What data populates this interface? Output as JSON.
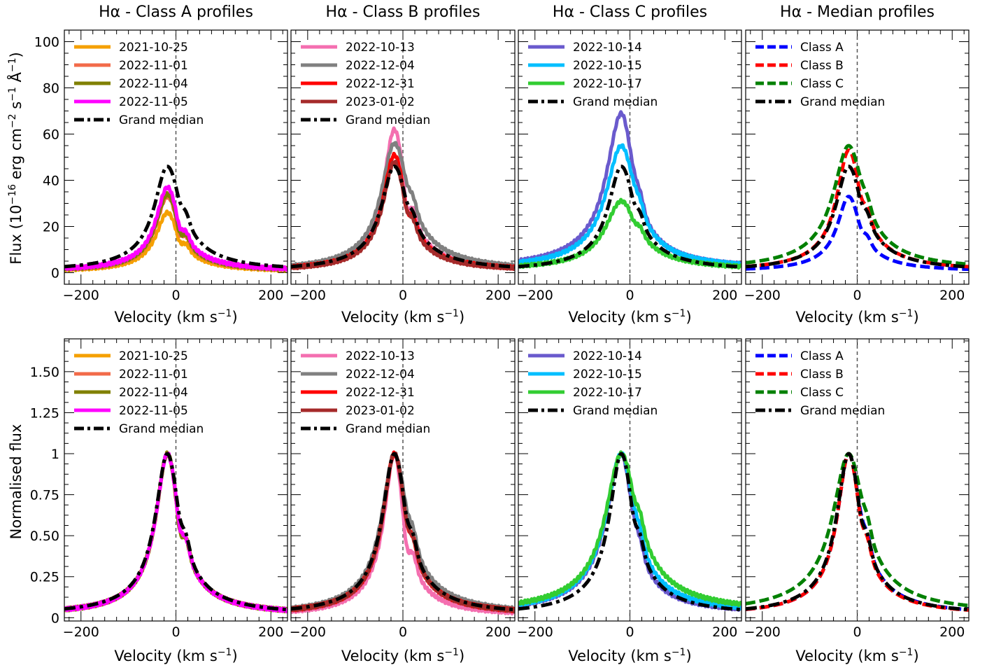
{
  "figure": {
    "ylabel_top": "Flux (10^-16 erg cm^-2 s^-1 Å^-1)",
    "ylabel_bottom": "Normalised flux",
    "xlabel": "Velocity (km s^-1)"
  },
  "chart_data": [
    {
      "type": "line",
      "row": 0,
      "col": 0,
      "title": "Hα - Class A profiles",
      "xlabel": "Velocity (km s^-1)",
      "ylabel": "Flux (10^-16 erg cm^-2 s^-1 Å^-1)",
      "xlim": [
        -235,
        235
      ],
      "ylim": [
        -5,
        105
      ],
      "xticks": [
        -200,
        0,
        200
      ],
      "yticks": [
        0,
        20,
        40,
        60,
        80,
        100
      ],
      "legend_loc": "upper left",
      "series": [
        {
          "name": "2021-10-25",
          "color": "#f5a000",
          "style": "solid",
          "peak": 26,
          "width": 1.0,
          "asym": 1.0,
          "dip": 0.12,
          "base": 0.6
        },
        {
          "name": "2022-11-01",
          "color": "#f26b4a",
          "style": "solid",
          "peak": 33,
          "width": 1.0,
          "asym": 1.0,
          "dip": 0.12,
          "base": 0.7
        },
        {
          "name": "2022-11-04",
          "color": "#808000",
          "style": "solid",
          "peak": 34,
          "width": 1.0,
          "asym": 1.0,
          "dip": 0.12,
          "base": 0.7
        },
        {
          "name": "2022-11-05",
          "color": "#ff00ff",
          "style": "solid",
          "peak": 37,
          "width": 1.0,
          "asym": 1.0,
          "dip": 0.1,
          "base": 0.8
        },
        {
          "name": "Grand median",
          "color": "#000000",
          "style": "dashdot",
          "peak": 46,
          "width": 1.15,
          "asym": 1.05,
          "dip": 0.04,
          "base": 0.8
        }
      ]
    },
    {
      "type": "line",
      "row": 0,
      "col": 1,
      "title": "Hα - Class B profiles",
      "xlabel": "Velocity (km s^-1)",
      "ylabel": "",
      "xlim": [
        -235,
        235
      ],
      "ylim": [
        -5,
        105
      ],
      "xticks": [
        -200,
        0,
        200
      ],
      "yticks": [
        0,
        20,
        40,
        60,
        80,
        100
      ],
      "legend_loc": "upper left",
      "series": [
        {
          "name": "2022-10-13",
          "color": "#f46fb0",
          "style": "solid",
          "peak": 62,
          "width": 0.95,
          "asym": 1.0,
          "dip": 0.15,
          "base": 0.7
        },
        {
          "name": "2022-12-04",
          "color": "#808080",
          "style": "solid",
          "peak": 56,
          "width": 1.15,
          "asym": 1.1,
          "dip": 0.03,
          "base": 0.8
        },
        {
          "name": "2022-12-31",
          "color": "#ff0000",
          "style": "solid",
          "peak": 51,
          "width": 1.0,
          "asym": 1.0,
          "dip": 0.1,
          "base": 0.9
        },
        {
          "name": "2023-01-02",
          "color": "#a52a2a",
          "style": "solid",
          "peak": 48,
          "width": 1.0,
          "asym": 1.0,
          "dip": 0.06,
          "base": 0.8
        },
        {
          "name": "Grand median",
          "color": "#000000",
          "style": "dashdot",
          "peak": 46,
          "width": 1.15,
          "asym": 1.05,
          "dip": 0.04,
          "base": 0.8
        }
      ]
    },
    {
      "type": "line",
      "row": 0,
      "col": 2,
      "title": "Hα - Class C profiles",
      "xlabel": "Velocity (km s^-1)",
      "ylabel": "",
      "xlim": [
        -235,
        235
      ],
      "ylim": [
        -5,
        105
      ],
      "xticks": [
        -200,
        0,
        200
      ],
      "yticks": [
        0,
        20,
        40,
        60,
        80,
        100
      ],
      "legend_loc": "upper left",
      "series": [
        {
          "name": "2022-10-14",
          "color": "#6a5acd",
          "style": "solid",
          "peak": 69,
          "width": 1.3,
          "asym": 0.8,
          "dip": 0.0,
          "base": 1.8
        },
        {
          "name": "2022-10-15",
          "color": "#00bfff",
          "style": "solid",
          "peak": 55,
          "width": 1.35,
          "asym": 0.9,
          "dip": 0.0,
          "base": 1.6
        },
        {
          "name": "2022-10-17",
          "color": "#32cd32",
          "style": "solid",
          "peak": 31,
          "width": 1.4,
          "asym": 1.0,
          "dip": 0.05,
          "base": 1.2
        },
        {
          "name": "Grand median",
          "color": "#000000",
          "style": "dashdot",
          "peak": 46,
          "width": 1.15,
          "asym": 1.05,
          "dip": 0.04,
          "base": 0.8
        }
      ]
    },
    {
      "type": "line",
      "row": 0,
      "col": 3,
      "title": "Hα - Median profiles",
      "xlabel": "Velocity (km s^-1)",
      "ylabel": "",
      "xlim": [
        -235,
        235
      ],
      "ylim": [
        -5,
        105
      ],
      "xticks": [
        -200,
        0,
        200
      ],
      "yticks": [
        0,
        20,
        40,
        60,
        80,
        100
      ],
      "legend_loc": "upper left",
      "series": [
        {
          "name": "Class A",
          "color": "#0000ff",
          "style": "dashed",
          "peak": 33,
          "width": 1.0,
          "asym": 1.0,
          "dip": 0.05,
          "base": 0.6
        },
        {
          "name": "Class B",
          "color": "#ff0000",
          "style": "dashed",
          "peak": 53,
          "width": 1.05,
          "asym": 1.05,
          "dip": 0.05,
          "base": 0.9
        },
        {
          "name": "Class C",
          "color": "#008000",
          "style": "dashed",
          "peak": 55,
          "width": 1.35,
          "asym": 0.95,
          "dip": 0.0,
          "base": 1.4
        },
        {
          "name": "Grand median",
          "color": "#000000",
          "style": "dashdot",
          "peak": 46,
          "width": 1.15,
          "asym": 1.05,
          "dip": 0.04,
          "base": 0.8
        }
      ]
    },
    {
      "type": "line",
      "row": 1,
      "col": 0,
      "title": "",
      "xlabel": "Velocity (km s^-1)",
      "ylabel": "Normalised flux",
      "xlim": [
        -235,
        235
      ],
      "ylim": [
        -0.02,
        1.7
      ],
      "xticks": [
        -200,
        0,
        200
      ],
      "yticks": [
        0.0,
        0.25,
        0.5,
        0.75,
        1.0,
        1.25,
        1.5
      ],
      "legend_loc": "upper left",
      "series": [
        {
          "name": "2021-10-25",
          "color": "#f5a000",
          "style": "solid",
          "peak": 1.0,
          "width": 1.0,
          "asym": 1.0,
          "dip": 0.1,
          "base": 0.02
        },
        {
          "name": "2022-11-01",
          "color": "#f26b4a",
          "style": "solid",
          "peak": 1.0,
          "width": 1.0,
          "asym": 1.0,
          "dip": 0.08,
          "base": 0.02
        },
        {
          "name": "2022-11-04",
          "color": "#808000",
          "style": "solid",
          "peak": 1.0,
          "width": 1.0,
          "asym": 1.0,
          "dip": 0.1,
          "base": 0.02
        },
        {
          "name": "2022-11-05",
          "color": "#ff00ff",
          "style": "solid",
          "peak": 1.0,
          "width": 1.0,
          "asym": 1.0,
          "dip": 0.08,
          "base": 0.02
        },
        {
          "name": "Grand median",
          "color": "#000000",
          "style": "dashdot",
          "peak": 1.0,
          "width": 1.05,
          "asym": 1.0,
          "dip": 0.04,
          "base": 0.02
        }
      ]
    },
    {
      "type": "line",
      "row": 1,
      "col": 1,
      "title": "",
      "xlabel": "Velocity (km s^-1)",
      "ylabel": "",
      "xlim": [
        -235,
        235
      ],
      "ylim": [
        -0.02,
        1.7
      ],
      "xticks": [
        -200,
        0,
        200
      ],
      "yticks": [
        0.0,
        0.25,
        0.5,
        0.75,
        1.0,
        1.25,
        1.5
      ],
      "legend_loc": "upper left",
      "series": [
        {
          "name": "2022-10-13",
          "color": "#f46fb0",
          "style": "solid",
          "peak": 1.0,
          "width": 0.9,
          "asym": 0.9,
          "dip": 0.1,
          "base": 0.015
        },
        {
          "name": "2022-12-04",
          "color": "#808080",
          "style": "solid",
          "peak": 1.0,
          "width": 1.1,
          "asym": 1.05,
          "dip": 0.03,
          "base": 0.02
        },
        {
          "name": "2022-12-31",
          "color": "#ff0000",
          "style": "solid",
          "peak": 1.0,
          "width": 1.0,
          "asym": 1.0,
          "dip": 0.05,
          "base": 0.02
        },
        {
          "name": "2023-01-02",
          "color": "#a52a2a",
          "style": "solid",
          "peak": 1.0,
          "width": 1.0,
          "asym": 1.0,
          "dip": 0.05,
          "base": 0.02
        },
        {
          "name": "Grand median",
          "color": "#000000",
          "style": "dashdot",
          "peak": 1.0,
          "width": 1.05,
          "asym": 1.0,
          "dip": 0.04,
          "base": 0.02
        }
      ]
    },
    {
      "type": "line",
      "row": 1,
      "col": 2,
      "title": "",
      "xlabel": "Velocity (km s^-1)",
      "ylabel": "",
      "xlim": [
        -235,
        235
      ],
      "ylim": [
        -0.02,
        1.7
      ],
      "xticks": [
        -200,
        0,
        200
      ],
      "yticks": [
        0.0,
        0.25,
        0.5,
        0.75,
        1.0,
        1.25,
        1.5
      ],
      "legend_loc": "upper left",
      "series": [
        {
          "name": "2022-10-14",
          "color": "#6a5acd",
          "style": "solid",
          "peak": 1.0,
          "width": 1.3,
          "asym": 0.75,
          "dip": 0.0,
          "base": 0.03
        },
        {
          "name": "2022-10-15",
          "color": "#00bfff",
          "style": "solid",
          "peak": 1.0,
          "width": 1.35,
          "asym": 0.85,
          "dip": 0.0,
          "base": 0.03
        },
        {
          "name": "2022-10-17",
          "color": "#32cd32",
          "style": "solid",
          "peak": 1.0,
          "width": 1.4,
          "asym": 1.0,
          "dip": 0.03,
          "base": 0.035
        },
        {
          "name": "Grand median",
          "color": "#000000",
          "style": "dashdot",
          "peak": 1.0,
          "width": 1.05,
          "asym": 1.0,
          "dip": 0.04,
          "base": 0.02
        }
      ]
    },
    {
      "type": "line",
      "row": 1,
      "col": 3,
      "title": "",
      "xlabel": "Velocity (km s^-1)",
      "ylabel": "",
      "xlim": [
        -235,
        235
      ],
      "ylim": [
        -0.02,
        1.7
      ],
      "xticks": [
        -200,
        0,
        200
      ],
      "yticks": [
        0.0,
        0.25,
        0.5,
        0.75,
        1.0,
        1.25,
        1.5
      ],
      "legend_loc": "upper left",
      "series": [
        {
          "name": "Class A",
          "color": "#0000ff",
          "style": "dashed",
          "peak": 1.0,
          "width": 1.0,
          "asym": 1.05,
          "dip": 0.02,
          "base": 0.02
        },
        {
          "name": "Class B",
          "color": "#ff0000",
          "style": "dashed",
          "peak": 1.0,
          "width": 1.0,
          "asym": 1.0,
          "dip": 0.03,
          "base": 0.02
        },
        {
          "name": "Class C",
          "color": "#008000",
          "style": "dashed",
          "peak": 1.0,
          "width": 1.4,
          "asym": 0.95,
          "dip": 0.0,
          "base": 0.03
        },
        {
          "name": "Grand median",
          "color": "#000000",
          "style": "dashdot",
          "peak": 1.0,
          "width": 1.05,
          "asym": 1.0,
          "dip": 0.04,
          "base": 0.02
        }
      ]
    }
  ]
}
